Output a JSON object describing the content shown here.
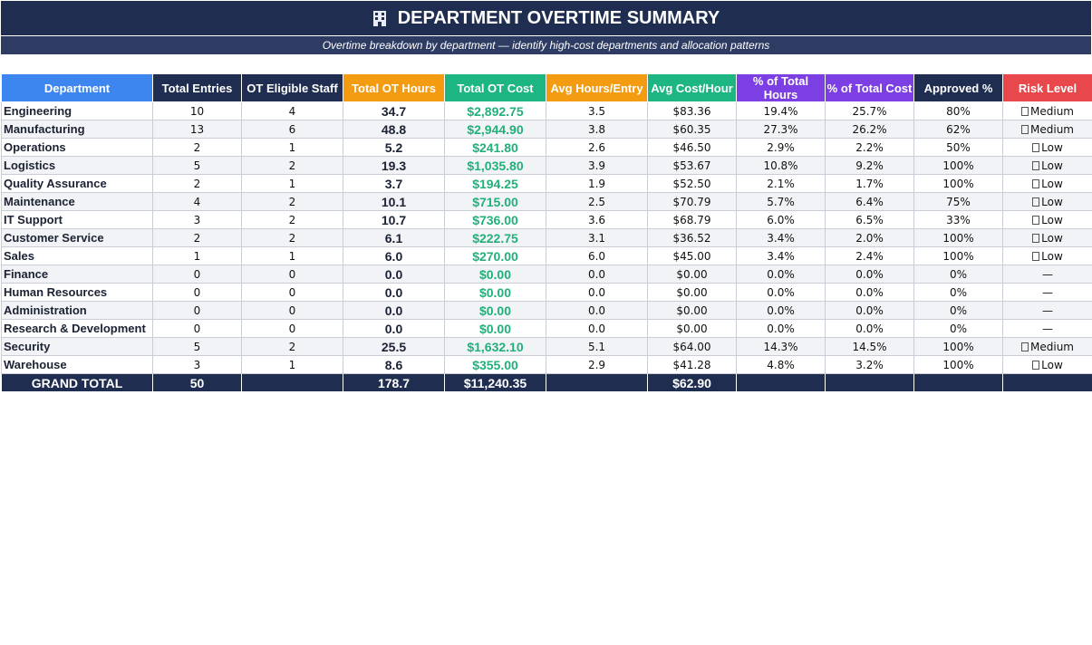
{
  "title": "DEPARTMENT OVERTIME SUMMARY",
  "subtitle": "Overtime breakdown by department — identify high-cost departments and allocation patterns",
  "colors": {
    "title_bg": "#1f2d50",
    "subtitle_bg": "#2e3c63",
    "cost_text": "#21b07a"
  },
  "columns": [
    {
      "label": "Department",
      "color": "#3d86f0"
    },
    {
      "label": "Total Entries",
      "color": "#1f2d50"
    },
    {
      "label": "OT Eligible Staff",
      "color": "#1f2d50"
    },
    {
      "label": "Total OT Hours",
      "color": "#f39c12"
    },
    {
      "label": "Total OT Cost",
      "color": "#1db581"
    },
    {
      "label": "Avg Hours/Entry",
      "color": "#f39c12"
    },
    {
      "label": "Avg Cost/Hour",
      "color": "#1db581"
    },
    {
      "label": "% of Total Hours",
      "color": "#7b3fe4"
    },
    {
      "label": "% of Total Cost",
      "color": "#7b3fe4"
    },
    {
      "label": "Approved %",
      "color": "#1f2d50"
    },
    {
      "label": "Risk Level",
      "color": "#e8474b"
    }
  ],
  "rows": [
    {
      "dept": "Engineering",
      "entries": "10",
      "staff": "4",
      "hours": "34.7",
      "cost": "$2,892.75",
      "avg_hours": "3.5",
      "avg_cost": "$83.36",
      "pct_hours": "19.4%",
      "pct_cost": "25.7%",
      "approved": "80%",
      "risk": "Medium"
    },
    {
      "dept": "Manufacturing",
      "entries": "13",
      "staff": "6",
      "hours": "48.8",
      "cost": "$2,944.90",
      "avg_hours": "3.8",
      "avg_cost": "$60.35",
      "pct_hours": "27.3%",
      "pct_cost": "26.2%",
      "approved": "62%",
      "risk": "Medium"
    },
    {
      "dept": "Operations",
      "entries": "2",
      "staff": "1",
      "hours": "5.2",
      "cost": "$241.80",
      "avg_hours": "2.6",
      "avg_cost": "$46.50",
      "pct_hours": "2.9%",
      "pct_cost": "2.2%",
      "approved": "50%",
      "risk": "Low"
    },
    {
      "dept": "Logistics",
      "entries": "5",
      "staff": "2",
      "hours": "19.3",
      "cost": "$1,035.80",
      "avg_hours": "3.9",
      "avg_cost": "$53.67",
      "pct_hours": "10.8%",
      "pct_cost": "9.2%",
      "approved": "100%",
      "risk": "Low"
    },
    {
      "dept": "Quality Assurance",
      "entries": "2",
      "staff": "1",
      "hours": "3.7",
      "cost": "$194.25",
      "avg_hours": "1.9",
      "avg_cost": "$52.50",
      "pct_hours": "2.1%",
      "pct_cost": "1.7%",
      "approved": "100%",
      "risk": "Low"
    },
    {
      "dept": "Maintenance",
      "entries": "4",
      "staff": "2",
      "hours": "10.1",
      "cost": "$715.00",
      "avg_hours": "2.5",
      "avg_cost": "$70.79",
      "pct_hours": "5.7%",
      "pct_cost": "6.4%",
      "approved": "75%",
      "risk": "Low"
    },
    {
      "dept": "IT Support",
      "entries": "3",
      "staff": "2",
      "hours": "10.7",
      "cost": "$736.00",
      "avg_hours": "3.6",
      "avg_cost": "$68.79",
      "pct_hours": "6.0%",
      "pct_cost": "6.5%",
      "approved": "33%",
      "risk": "Low"
    },
    {
      "dept": "Customer Service",
      "entries": "2",
      "staff": "2",
      "hours": "6.1",
      "cost": "$222.75",
      "avg_hours": "3.1",
      "avg_cost": "$36.52",
      "pct_hours": "3.4%",
      "pct_cost": "2.0%",
      "approved": "100%",
      "risk": "Low"
    },
    {
      "dept": "Sales",
      "entries": "1",
      "staff": "1",
      "hours": "6.0",
      "cost": "$270.00",
      "avg_hours": "6.0",
      "avg_cost": "$45.00",
      "pct_hours": "3.4%",
      "pct_cost": "2.4%",
      "approved": "100%",
      "risk": "Low"
    },
    {
      "dept": "Finance",
      "entries": "0",
      "staff": "0",
      "hours": "0.0",
      "cost": "$0.00",
      "avg_hours": "0.0",
      "avg_cost": "$0.00",
      "pct_hours": "0.0%",
      "pct_cost": "0.0%",
      "approved": "0%",
      "risk": "—"
    },
    {
      "dept": "Human Resources",
      "entries": "0",
      "staff": "0",
      "hours": "0.0",
      "cost": "$0.00",
      "avg_hours": "0.0",
      "avg_cost": "$0.00",
      "pct_hours": "0.0%",
      "pct_cost": "0.0%",
      "approved": "0%",
      "risk": "—"
    },
    {
      "dept": "Administration",
      "entries": "0",
      "staff": "0",
      "hours": "0.0",
      "cost": "$0.00",
      "avg_hours": "0.0",
      "avg_cost": "$0.00",
      "pct_hours": "0.0%",
      "pct_cost": "0.0%",
      "approved": "0%",
      "risk": "—"
    },
    {
      "dept": "Research & Development",
      "entries": "0",
      "staff": "0",
      "hours": "0.0",
      "cost": "$0.00",
      "avg_hours": "0.0",
      "avg_cost": "$0.00",
      "pct_hours": "0.0%",
      "pct_cost": "0.0%",
      "approved": "0%",
      "risk": "—"
    },
    {
      "dept": "Security",
      "entries": "5",
      "staff": "2",
      "hours": "25.5",
      "cost": "$1,632.10",
      "avg_hours": "5.1",
      "avg_cost": "$64.00",
      "pct_hours": "14.3%",
      "pct_cost": "14.5%",
      "approved": "100%",
      "risk": "Medium"
    },
    {
      "dept": "Warehouse",
      "entries": "3",
      "staff": "1",
      "hours": "8.6",
      "cost": "$355.00",
      "avg_hours": "2.9",
      "avg_cost": "$41.28",
      "pct_hours": "4.8%",
      "pct_cost": "3.2%",
      "approved": "100%",
      "risk": "Low"
    }
  ],
  "total": {
    "label": "GRAND TOTAL",
    "entries": "50",
    "hours": "178.7",
    "cost": "$11,240.35",
    "avg_cost": "$62.90"
  }
}
